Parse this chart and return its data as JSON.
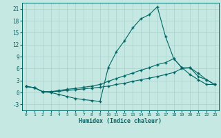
{
  "xlabel": "Humidex (Indice chaleur)",
  "background_color": "#c5e8e2",
  "grid_color": "#a8d0ca",
  "line_color": "#006666",
  "marker": "+",
  "xlim": [
    -0.5,
    23.5
  ],
  "ylim": [
    -4.5,
    22.5
  ],
  "yticks": [
    -3,
    0,
    3,
    6,
    9,
    12,
    15,
    18,
    21
  ],
  "xticks": [
    0,
    1,
    2,
    3,
    4,
    5,
    6,
    7,
    8,
    9,
    10,
    11,
    12,
    13,
    14,
    15,
    16,
    17,
    18,
    19,
    20,
    21,
    22,
    23
  ],
  "line1_x": [
    0,
    1,
    2,
    3,
    4,
    5,
    6,
    7,
    8,
    9,
    10,
    11,
    12,
    13,
    14,
    15,
    16,
    17,
    18,
    19,
    20,
    21,
    22,
    23
  ],
  "line1_y": [
    1.5,
    1.2,
    0.2,
    0.0,
    -0.5,
    -1.0,
    -1.5,
    -1.8,
    -2.0,
    -2.3,
    6.2,
    10.2,
    13.0,
    16.2,
    18.5,
    19.5,
    21.5,
    14.0,
    8.5,
    6.2,
    4.5,
    3.2,
    2.0,
    2.0
  ],
  "line2_x": [
    0,
    1,
    2,
    3,
    4,
    5,
    6,
    7,
    8,
    9,
    10,
    11,
    12,
    13,
    14,
    15,
    16,
    17,
    18,
    19,
    20,
    21,
    22,
    23
  ],
  "line2_y": [
    1.5,
    1.2,
    0.2,
    0.2,
    0.5,
    0.8,
    1.0,
    1.3,
    1.6,
    2.0,
    2.8,
    3.5,
    4.2,
    4.9,
    5.6,
    6.2,
    7.0,
    7.5,
    8.5,
    6.2,
    6.2,
    4.8,
    3.2,
    2.0
  ],
  "line3_x": [
    0,
    1,
    2,
    3,
    4,
    5,
    6,
    7,
    8,
    9,
    10,
    11,
    12,
    13,
    14,
    15,
    16,
    17,
    18,
    19,
    20,
    21,
    22,
    23
  ],
  "line3_y": [
    1.5,
    1.2,
    0.2,
    0.2,
    0.3,
    0.5,
    0.7,
    0.9,
    1.1,
    1.3,
    1.6,
    2.0,
    2.3,
    2.8,
    3.2,
    3.6,
    4.0,
    4.5,
    5.0,
    6.0,
    6.2,
    4.0,
    3.2,
    2.0
  ]
}
